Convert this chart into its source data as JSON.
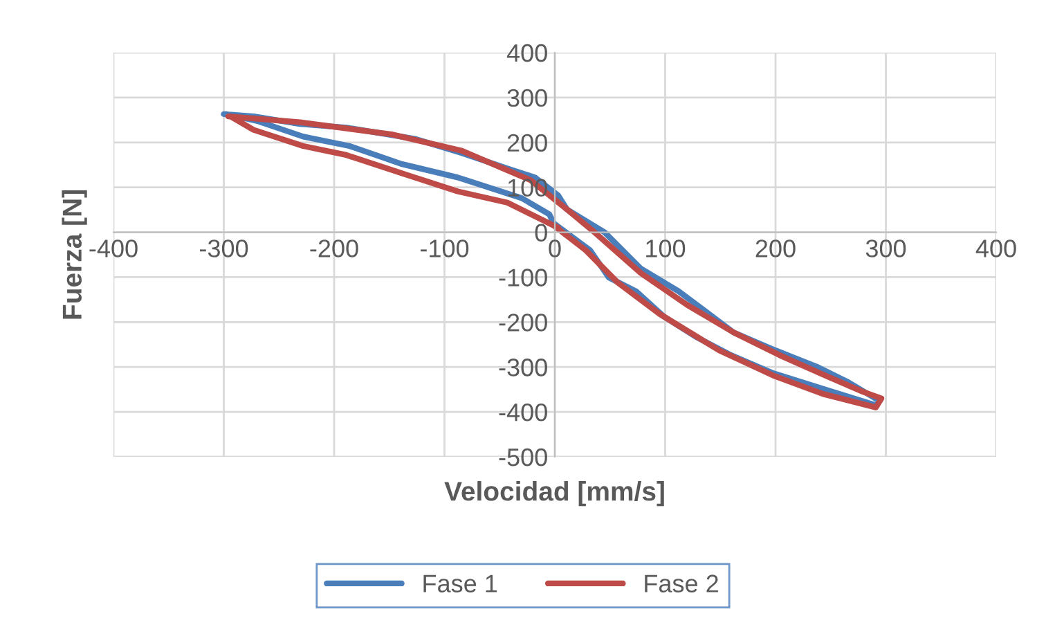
{
  "chart_data": {
    "type": "line",
    "xlabel": "Velocidad [mm/s]",
    "ylabel": "Fuerza [N]",
    "xlim": [
      -400,
      400
    ],
    "xticks": [
      -400,
      -300,
      -200,
      -100,
      0,
      100,
      200,
      300,
      400
    ],
    "ylim": [
      -500,
      400
    ],
    "yticks": [
      -500,
      -400,
      -300,
      -200,
      -100,
      0,
      100,
      200,
      300,
      400
    ],
    "grid": true,
    "legend": "bottom",
    "line_style": "solid",
    "marker": "none",
    "series": [
      {
        "name": "Fase 1",
        "color": "#4a7ebb",
        "x": [
          -300,
          -273,
          -231,
          -189,
          -127,
          -85,
          -43,
          -18,
          3,
          11,
          45,
          78,
          112,
          162,
          200,
          237,
          266,
          294,
          291,
          245,
          198,
          160,
          128,
          99,
          74,
          49,
          32,
          -1,
          -5,
          -30,
          -88,
          -139,
          -186,
          -228,
          -270,
          -298
        ],
        "values": [
          263,
          258,
          241,
          233,
          208,
          177,
          142,
          122,
          82,
          51,
          0,
          -81,
          -131,
          -223,
          -263,
          -299,
          -334,
          -375,
          -385,
          -350,
          -314,
          -274,
          -233,
          -188,
          -132,
          -101,
          -40,
          20,
          40,
          76,
          122,
          152,
          192,
          213,
          248,
          263
        ]
      },
      {
        "name": "Fase 2",
        "color": "#be4b48",
        "x": [
          -296,
          -231,
          -148,
          -85,
          -22,
          11,
          36,
          78,
          120,
          162,
          204,
          245,
          279,
          296,
          291,
          243,
          198,
          149,
          95,
          57,
          28,
          -1,
          3,
          -43,
          -88,
          -127,
          -189,
          -228,
          -273,
          -294
        ],
        "values": [
          258,
          245,
          218,
          182,
          116,
          51,
          0,
          -91,
          -162,
          -223,
          -274,
          -319,
          -355,
          -370,
          -390,
          -360,
          -319,
          -263,
          -182,
          -112,
          -40,
          15,
          10,
          66,
          91,
          122,
          172,
          192,
          228,
          258
        ]
      }
    ]
  }
}
